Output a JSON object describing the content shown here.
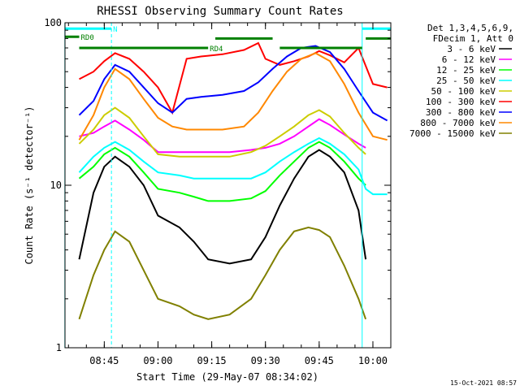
{
  "chart_data": {
    "type": "line",
    "title": "RHESSI Observing Summary Count Rates",
    "xlabel": "Start Time (29-May-07 08:34:02)",
    "ylabel": "Count Rate (s⁻¹ detector⁻¹)",
    "y_scale": "log",
    "ylim": [
      1,
      100
    ],
    "xlim": [
      "08:34:02",
      "10:05:00"
    ],
    "y_ticks": [
      {
        "value": 1,
        "label": "1"
      },
      {
        "value": 10,
        "label": "10"
      },
      {
        "value": 100,
        "label": "100"
      }
    ],
    "x_ticks": [
      {
        "value": "08:45",
        "label": "08:45"
      },
      {
        "value": "09:00",
        "label": "09:00"
      },
      {
        "value": "09:15",
        "label": "09:15"
      },
      {
        "value": "09:30",
        "label": "09:30"
      },
      {
        "value": "09:45",
        "label": "09:45"
      },
      {
        "value": "10:00",
        "label": "10:00"
      }
    ],
    "legend_header": [
      "Det 1,3,4,5,6,9,",
      "FDecim 1, Att 0"
    ],
    "legend_position": "right",
    "series": [
      {
        "name": "3 - 6 keV",
        "color": "#000000",
        "x": [
          "08:38",
          "08:42",
          "08:45",
          "08:48",
          "08:52",
          "08:56",
          "09:00",
          "09:06",
          "09:10",
          "09:14",
          "09:20",
          "09:26",
          "09:30",
          "09:34",
          "09:38",
          "09:42",
          "09:45",
          "09:48",
          "09:52",
          "09:56",
          "09:58"
        ],
        "values": [
          3.5,
          9,
          13,
          15,
          13,
          10,
          6.5,
          5.5,
          4.5,
          3.5,
          3.3,
          3.5,
          4.8,
          7.5,
          11,
          15,
          16.5,
          15,
          12,
          7,
          3.5
        ]
      },
      {
        "name": "6 - 12 keV",
        "color": "#ff00ff",
        "x": [
          "08:38",
          "08:42",
          "08:45",
          "08:48",
          "08:52",
          "08:56",
          "09:00",
          "09:06",
          "09:10",
          "09:14",
          "09:20",
          "09:26",
          "09:30",
          "09:34",
          "09:38",
          "09:42",
          "09:45",
          "09:48",
          "09:52",
          "09:56",
          "09:58"
        ],
        "values": [
          20,
          21,
          23,
          25,
          22,
          19,
          16,
          16,
          16,
          16,
          16,
          16.5,
          17,
          18,
          20,
          23,
          25.5,
          23.5,
          20.5,
          18,
          17
        ]
      },
      {
        "name": "12 - 25 keV",
        "color": "#00ff00",
        "x": [
          "08:38",
          "08:42",
          "08:45",
          "08:48",
          "08:52",
          "08:56",
          "09:00",
          "09:06",
          "09:10",
          "09:14",
          "09:20",
          "09:26",
          "09:30",
          "09:34",
          "09:38",
          "09:42",
          "09:45",
          "09:48",
          "09:52",
          "09:56",
          "09:58"
        ],
        "values": [
          11,
          13,
          15.5,
          17,
          15,
          12,
          9.5,
          9,
          8.5,
          8,
          8,
          8.3,
          9.2,
          11.5,
          14,
          17,
          18.5,
          17,
          14,
          11,
          10
        ]
      },
      {
        "name": "25 - 50 keV",
        "color": "#00ffff",
        "x": [
          "08:38",
          "08:42",
          "08:45",
          "08:48",
          "08:52",
          "08:56",
          "09:00",
          "09:06",
          "09:10",
          "09:14",
          "09:20",
          "09:26",
          "09:30",
          "09:34",
          "09:38",
          "09:42",
          "09:45",
          "09:48",
          "09:52",
          "09:56",
          "09:58",
          "10:00",
          "10:04"
        ],
        "values": [
          12,
          15,
          17,
          18.5,
          16.5,
          14,
          12,
          11.5,
          11,
          11,
          11,
          11,
          12,
          14,
          16,
          18,
          19.5,
          18,
          15.5,
          12.5,
          9.5,
          8.8,
          8.8
        ]
      },
      {
        "name": "50 - 100 keV",
        "color": "#cccc00",
        "x": [
          "08:38",
          "08:42",
          "08:45",
          "08:48",
          "08:52",
          "08:56",
          "09:00",
          "09:06",
          "09:10",
          "09:14",
          "09:20",
          "09:26",
          "09:30",
          "09:34",
          "09:38",
          "09:42",
          "09:45",
          "09:48",
          "09:52",
          "09:56",
          "09:58"
        ],
        "values": [
          18,
          22,
          27,
          30,
          26,
          20,
          15.5,
          15,
          15,
          15,
          15,
          16,
          17.5,
          20,
          23,
          27,
          29,
          26.5,
          21,
          17,
          15.5
        ]
      },
      {
        "name": "100 - 300 keV",
        "color": "#ff0000",
        "x": [
          "08:38",
          "08:42",
          "08:45",
          "08:48",
          "08:52",
          "08:56",
          "09:00",
          "09:04",
          "09:08",
          "09:12",
          "09:18",
          "09:24",
          "09:28",
          "09:30",
          "09:34",
          "09:38",
          "09:42",
          "09:45",
          "09:48",
          "09:52",
          "09:56",
          "10:00",
          "10:04"
        ],
        "values": [
          45,
          50,
          58,
          65,
          60,
          50,
          40,
          28,
          60,
          62,
          64,
          68,
          75,
          60,
          55,
          58,
          62,
          67,
          63,
          57,
          70,
          42,
          40
        ]
      },
      {
        "name": "300 - 800 keV",
        "color": "#0000ff",
        "x": [
          "08:38",
          "08:42",
          "08:45",
          "08:48",
          "08:52",
          "08:56",
          "09:00",
          "09:04",
          "09:08",
          "09:12",
          "09:18",
          "09:24",
          "09:28",
          "09:32",
          "09:36",
          "09:40",
          "09:44",
          "09:48",
          "09:52",
          "09:56",
          "10:00",
          "10:04"
        ],
        "values": [
          27,
          33,
          45,
          55,
          50,
          40,
          32,
          28,
          34,
          35,
          36,
          38,
          43,
          52,
          62,
          70,
          72,
          66,
          52,
          38,
          28,
          25
        ]
      },
      {
        "name": "800 - 7000 keV",
        "color": "#ff8800",
        "x": [
          "08:38",
          "08:42",
          "08:45",
          "08:48",
          "08:52",
          "08:56",
          "09:00",
          "09:04",
          "09:08",
          "09:12",
          "09:18",
          "09:24",
          "09:28",
          "09:32",
          "09:36",
          "09:40",
          "09:44",
          "09:48",
          "09:52",
          "09:56",
          "10:00",
          "10:04"
        ],
        "values": [
          19,
          27,
          40,
          52,
          45,
          34,
          26,
          23,
          22,
          22,
          22,
          23,
          28,
          38,
          50,
          60,
          65,
          58,
          42,
          28,
          20,
          19
        ]
      },
      {
        "name": "7000 - 15000 keV",
        "color": "#808000",
        "x": [
          "08:38",
          "08:42",
          "08:45",
          "08:48",
          "08:52",
          "08:56",
          "09:00",
          "09:06",
          "09:10",
          "09:14",
          "09:20",
          "09:26",
          "09:30",
          "09:34",
          "09:38",
          "09:42",
          "09:45",
          "09:48",
          "09:52",
          "09:56",
          "09:58"
        ],
        "values": [
          1.5,
          2.8,
          4,
          5.2,
          4.5,
          3,
          2,
          1.8,
          1.6,
          1.5,
          1.6,
          2,
          2.8,
          4,
          5.2,
          5.5,
          5.3,
          4.8,
          3.2,
          2,
          1.5
        ]
      }
    ],
    "annotations": [
      {
        "label": "N",
        "color": "#00ffff",
        "x_start": "08:34",
        "x_end": "08:47",
        "y_value": 92
      },
      {
        "label": "RD0",
        "color": "#008000",
        "x_start": "08:34",
        "x_end": "08:38",
        "y_value": 82
      },
      {
        "label": "RD4",
        "color": "#008000",
        "x_start": "08:38",
        "x_end": "09:14",
        "y_value": 70
      },
      {
        "label": "",
        "color": "#008000",
        "x_start": "09:16",
        "x_end": "09:32",
        "y_value": 80
      },
      {
        "label": "",
        "color": "#008000",
        "x_start": "09:34",
        "x_end": "09:57",
        "y_value": 70
      },
      {
        "label": "",
        "color": "#008000",
        "x_start": "09:58",
        "x_end": "10:05",
        "y_value": 80
      },
      {
        "label": "",
        "color": "#00ffff",
        "x_start": "09:57",
        "x_end": "10:05",
        "y_value": 92
      }
    ],
    "vertical_markers": [
      {
        "time": "08:34",
        "color": "#00ffff",
        "style": "solid"
      },
      {
        "time": "08:47",
        "color": "#00ffff",
        "style": "dashed"
      },
      {
        "time": "09:57",
        "color": "#00ffff",
        "style": "solid"
      },
      {
        "time": "10:05",
        "color": "#00ffff",
        "style": "dashed"
      }
    ],
    "footer_timestamp": "15-Oct-2021 08:57"
  }
}
